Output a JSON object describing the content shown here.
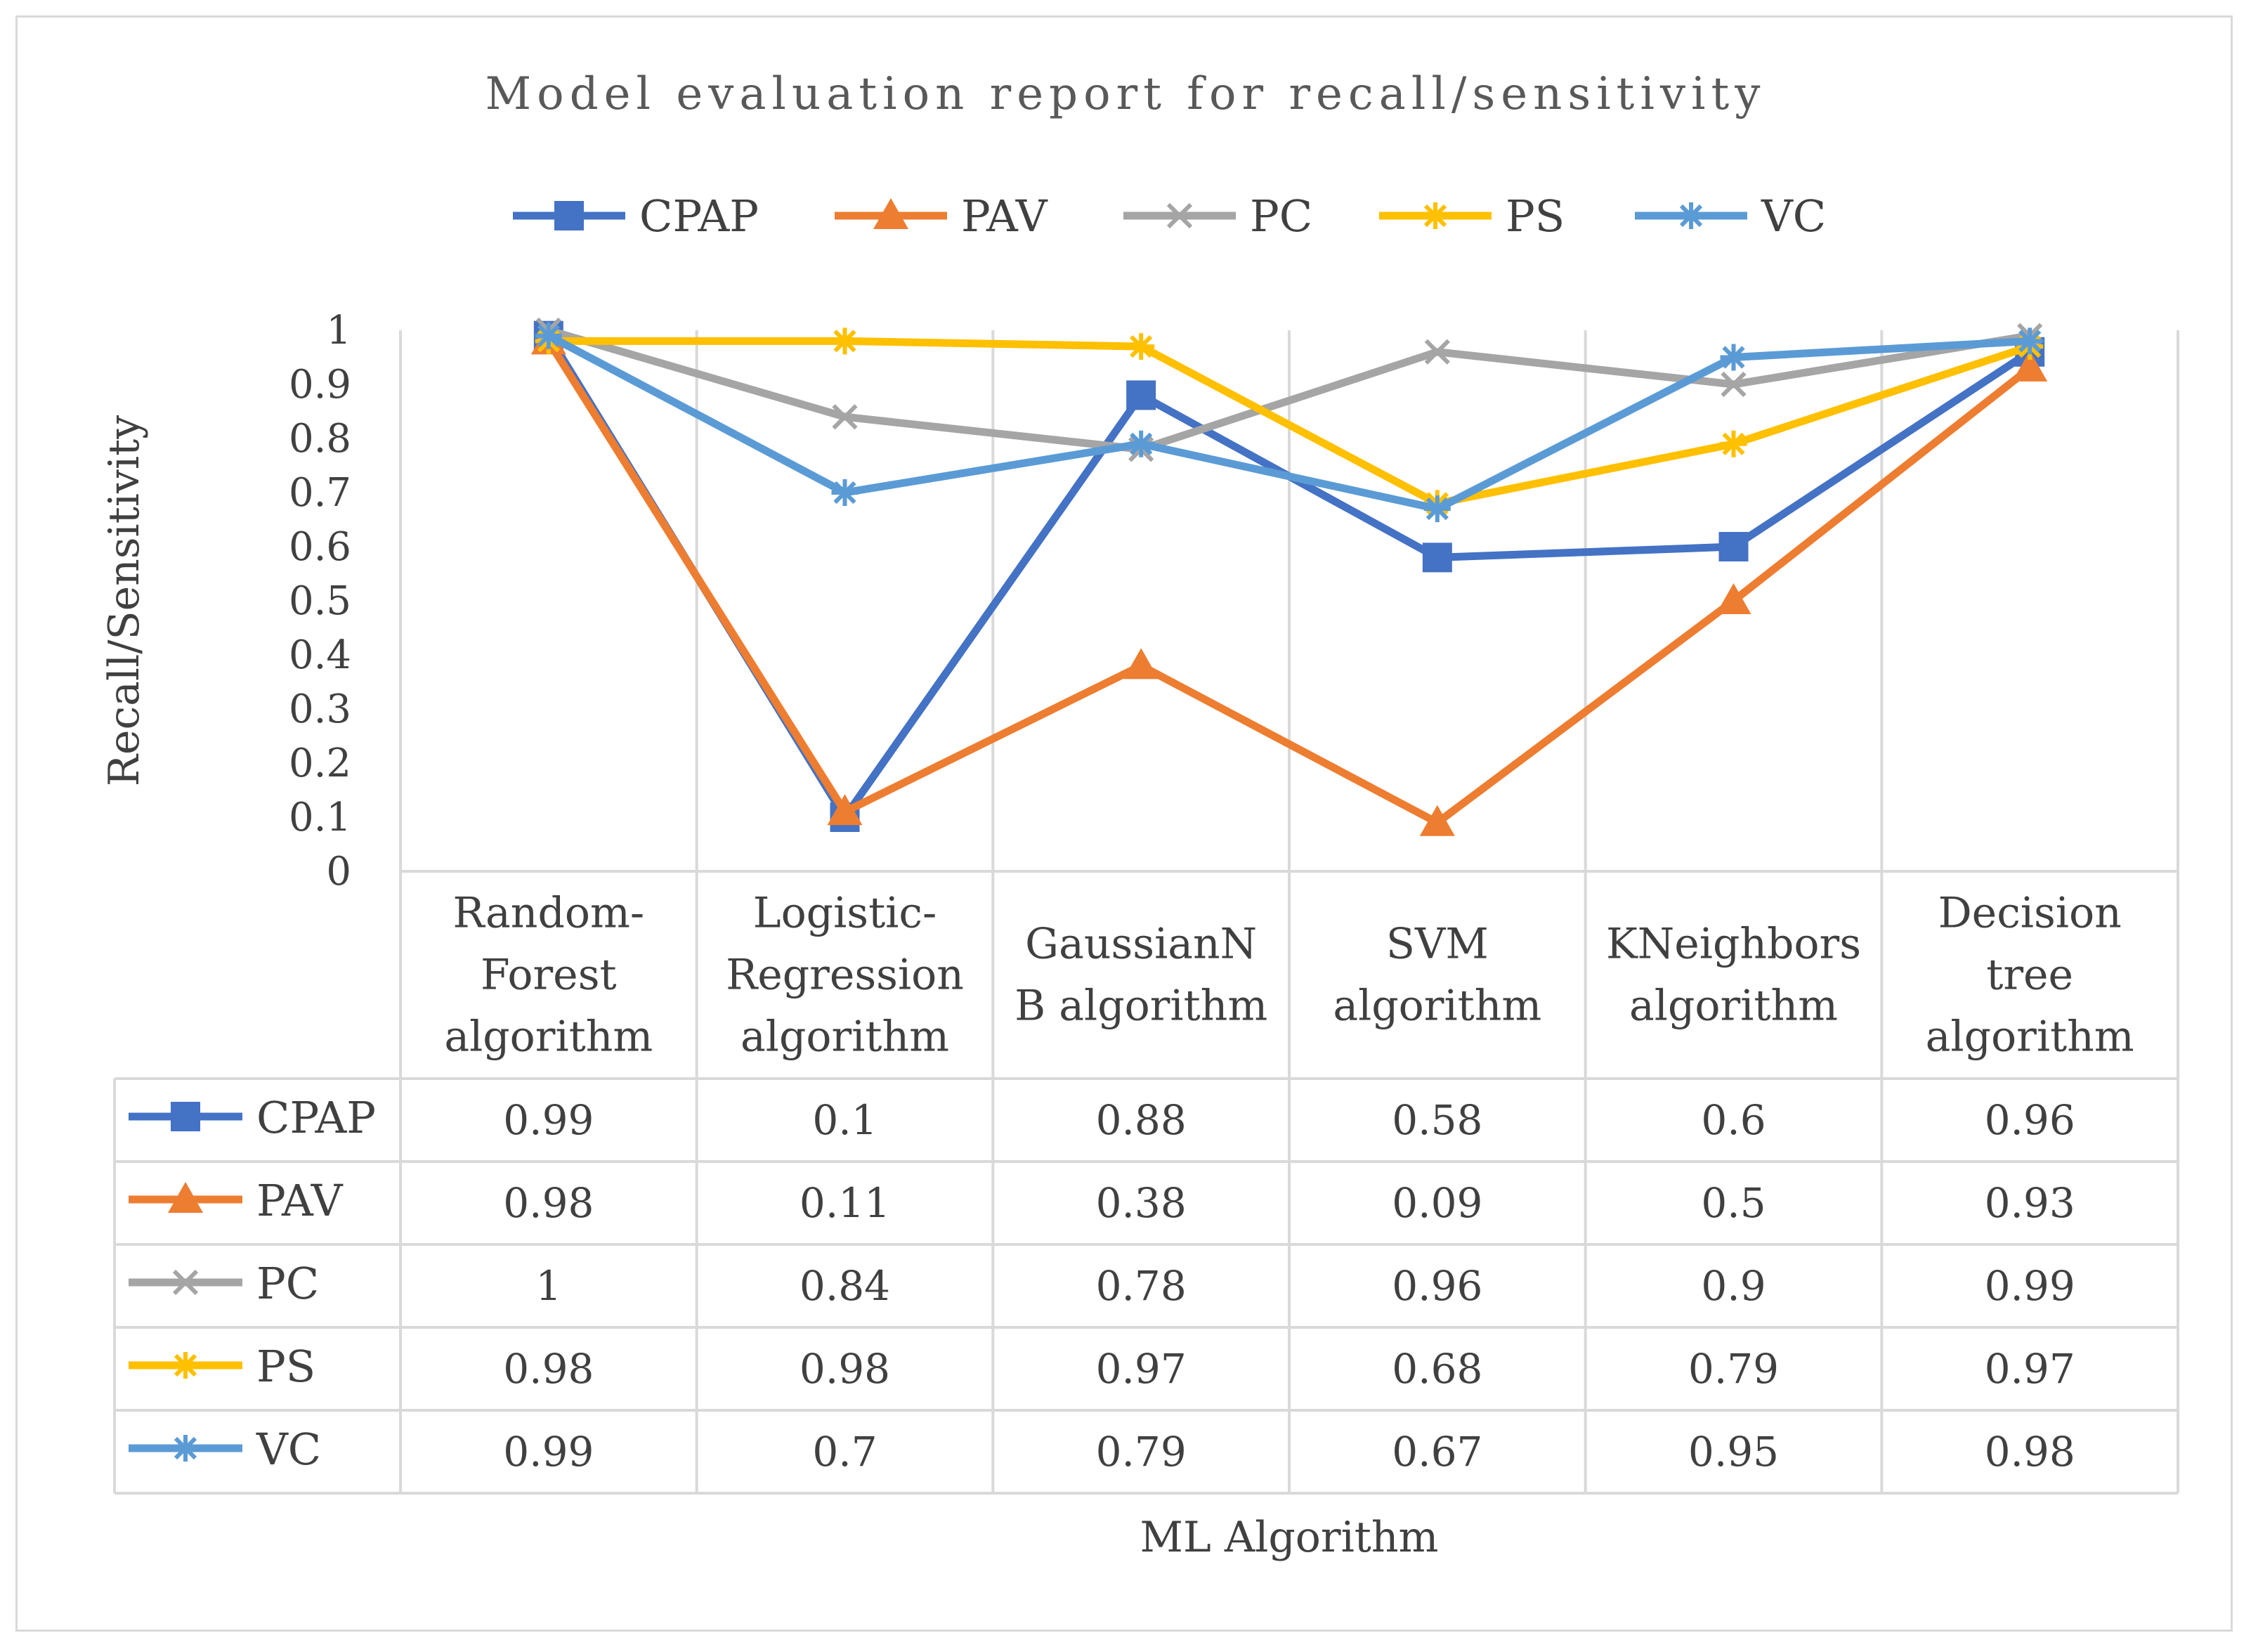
{
  "chart_data": {
    "type": "line",
    "title": "Model evaluation report for recall/sensitivity",
    "xlabel": "ML Algorithm",
    "ylabel": "Recall/Sensitivity",
    "ylim": [
      0,
      1
    ],
    "yticks": [
      "0",
      "0.1",
      "0.2",
      "0.3",
      "0.4",
      "0.5",
      "0.6",
      "0.7",
      "0.8",
      "0.9",
      "1"
    ],
    "categories": [
      [
        "Random-",
        "Forest",
        "algorithm"
      ],
      [
        "Logistic-",
        "Regression",
        "algorithm"
      ],
      [
        "GaussianN",
        "B algorithm"
      ],
      [
        "SVM",
        "algorithm"
      ],
      [
        "KNeighbors",
        "algorithm"
      ],
      [
        "Decision",
        "tree",
        "algorithm"
      ]
    ],
    "series": [
      {
        "name": "CPAP",
        "color": "#4472c4",
        "marker": "square",
        "values": [
          0.99,
          0.1,
          0.88,
          0.58,
          0.6,
          0.96
        ],
        "labels": [
          "0.99",
          "0.1",
          "0.88",
          "0.58",
          "0.6",
          "0.96"
        ]
      },
      {
        "name": "PAV",
        "color": "#ed7d31",
        "marker": "triangle",
        "values": [
          0.98,
          0.11,
          0.38,
          0.09,
          0.5,
          0.93
        ],
        "labels": [
          "0.98",
          "0.11",
          "0.38",
          "0.09",
          "0.5",
          "0.93"
        ]
      },
      {
        "name": "PC",
        "color": "#a5a5a5",
        "marker": "x",
        "values": [
          1,
          0.84,
          0.78,
          0.96,
          0.9,
          0.99
        ],
        "labels": [
          "1",
          "0.84",
          "0.78",
          "0.96",
          "0.9",
          "0.99"
        ]
      },
      {
        "name": "PS",
        "color": "#ffc000",
        "marker": "star",
        "values": [
          0.98,
          0.98,
          0.97,
          0.68,
          0.79,
          0.97
        ],
        "labels": [
          "0.98",
          "0.98",
          "0.97",
          "0.68",
          "0.79",
          "0.97"
        ]
      },
      {
        "name": "VC",
        "color": "#5b9bd5",
        "marker": "star",
        "values": [
          0.99,
          0.7,
          0.79,
          0.67,
          0.95,
          0.98
        ],
        "labels": [
          "0.99",
          "0.7",
          "0.79",
          "0.67",
          "0.95",
          "0.98"
        ]
      }
    ]
  }
}
